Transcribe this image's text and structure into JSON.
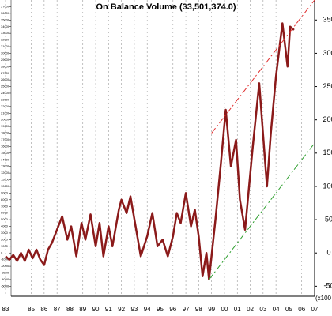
{
  "chart_data": {
    "type": "line",
    "title": "On Balance Volume (33,501,374.0)",
    "x": [
      1983.0,
      1983.3,
      1983.6,
      1983.9,
      1984.2,
      1984.5,
      1984.8,
      1985.1,
      1985.4,
      1985.7,
      1986.0,
      1986.3,
      1986.6,
      1987.0,
      1987.4,
      1987.8,
      1988.1,
      1988.5,
      1988.9,
      1989.2,
      1989.6,
      1990.0,
      1990.3,
      1990.6,
      1991.0,
      1991.3,
      1991.8,
      1992.0,
      1992.4,
      1992.7,
      1993.1,
      1993.5,
      1994.0,
      1994.4,
      1994.8,
      1995.2,
      1995.6,
      1996.0,
      1996.3,
      1996.6,
      1997.0,
      1997.4,
      1997.7,
      1998.0,
      1998.3,
      1998.6,
      1998.8,
      1999.3,
      1999.7,
      2000.1,
      2000.5,
      2000.9,
      2001.2,
      2001.6,
      2002.2,
      2002.7,
      2003.3,
      2003.6,
      2004.0,
      2004.5,
      2004.9,
      2005.1,
      2005.4
    ],
    "series": [
      {
        "color": "#8b1a1a",
        "values": [
          -5,
          -10,
          -3,
          -12,
          0,
          -12,
          5,
          -8,
          5,
          -10,
          -18,
          5,
          15,
          35,
          55,
          20,
          40,
          -5,
          45,
          20,
          58,
          10,
          45,
          -5,
          40,
          10,
          65,
          80,
          60,
          85,
          40,
          -5,
          25,
          60,
          10,
          20,
          -5,
          25,
          60,
          45,
          90,
          40,
          65,
          25,
          -35,
          0,
          -40,
          50,
          130,
          215,
          130,
          170,
          80,
          35,
          160,
          255,
          100,
          180,
          265,
          345,
          280,
          340,
          335
        ]
      }
    ],
    "trend_lines": [
      {
        "color": "#e03030",
        "x": [
          1999.0,
          2007.0
        ],
        "values": [
          180,
          380
        ]
      },
      {
        "color": "#30a030",
        "x": [
          1998.8,
          2007.0
        ],
        "values": [
          -40,
          165
        ]
      }
    ],
    "xlim": [
      1983.43,
      2007.0
    ],
    "xticks": [
      {
        "value": 1983,
        "label": "83"
      },
      {
        "value": 1985,
        "label": "85"
      },
      {
        "value": 1986,
        "label": "86"
      },
      {
        "value": 1987,
        "label": "87"
      },
      {
        "value": 1988,
        "label": "88"
      },
      {
        "value": 1989,
        "label": "89"
      },
      {
        "value": 1990,
        "label": "90"
      },
      {
        "value": 1991,
        "label": "91"
      },
      {
        "value": 1992,
        "label": "92"
      },
      {
        "value": 1993,
        "label": "93"
      },
      {
        "value": 1994,
        "label": "94"
      },
      {
        "value": 1995,
        "label": "95"
      },
      {
        "value": 1996,
        "label": "96"
      },
      {
        "value": 1997,
        "label": "97"
      },
      {
        "value": 1998,
        "label": "98"
      },
      {
        "value": 1999,
        "label": "99"
      },
      {
        "value": 2000,
        "label": "00"
      },
      {
        "value": 2001,
        "label": "01"
      },
      {
        "value": 2002,
        "label": "02"
      },
      {
        "value": 2003,
        "label": "03"
      },
      {
        "value": 2004,
        "label": "04"
      },
      {
        "value": 2005,
        "label": "05"
      },
      {
        "value": 2006,
        "label": "06"
      },
      {
        "value": 2007,
        "label": "07"
      }
    ],
    "ylim": [
      -65,
      380
    ],
    "yticks": [
      -50,
      0,
      50,
      100,
      150,
      200,
      250,
      300,
      350
    ],
    "y_unit_label": "(x100",
    "y2lim": [
      -6500,
      38000
    ],
    "y2ticks": [
      37000,
      36000,
      35000,
      34000,
      33000,
      32000,
      31000,
      30000,
      29000,
      28000,
      27000,
      26000,
      25000,
      24000,
      23000,
      22000,
      21000,
      20000,
      19000,
      18000,
      17000,
      16000,
      15000,
      14000,
      13000,
      12000,
      11000,
      10000,
      9000,
      8000,
      7000,
      6000,
      5000,
      4000,
      3000,
      2000,
      1000,
      0,
      -1000,
      -2000,
      -3000,
      -4000,
      -5000
    ],
    "grid": true
  }
}
